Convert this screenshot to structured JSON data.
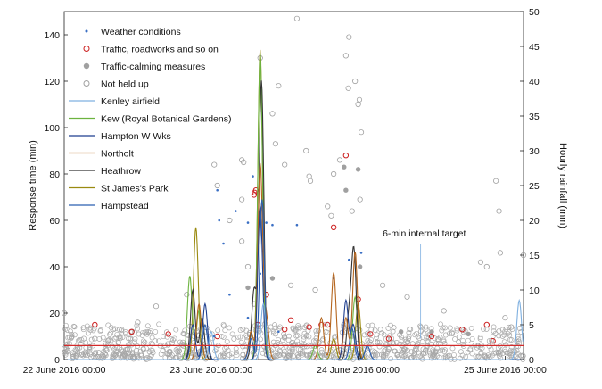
{
  "chart_data": {
    "type": "scatter",
    "title": "",
    "x_axis": {
      "ticks": [
        {
          "x": 0,
          "label": "22 June 2016 00:00"
        },
        {
          "x": 24,
          "label": "23 June 2016 00:00"
        },
        {
          "x": 48,
          "label": "24 June 2016 00:00"
        },
        {
          "x": 72,
          "label": "25 June 2016 00:00"
        }
      ],
      "range_hours": [
        0,
        75
      ]
    },
    "y_left": {
      "label": "Response time (min)",
      "range": [
        0,
        150
      ],
      "ticks": [
        0,
        20,
        40,
        60,
        80,
        100,
        120,
        140
      ]
    },
    "y_right": {
      "label": "Hourly rainfall (mm)",
      "range": [
        0,
        50
      ],
      "ticks": [
        0,
        5,
        10,
        15,
        20,
        25,
        30,
        35,
        40,
        45,
        50
      ]
    },
    "target_line": {
      "value": 6,
      "label": "6-min internal target",
      "color": "#d42a2a",
      "label_x_hours": 52,
      "label_y": 53
    },
    "legend": [
      {
        "key": "weather",
        "label": "Weather conditions",
        "marker": "dot",
        "color": "#3a6fc4"
      },
      {
        "key": "traffic",
        "label": "Traffic, roadworks and so on",
        "marker": "ring",
        "color": "#cc1f1f"
      },
      {
        "key": "calming",
        "label": "Traffic-calming measures",
        "marker": "disc",
        "color": "#a0a0a0"
      },
      {
        "key": "notheld",
        "label": "Not held up",
        "marker": "ring",
        "color": "#a0a0a0"
      },
      {
        "key": "kenley",
        "label": "Kenley airfield",
        "marker": "line",
        "color": "#7fb0e0"
      },
      {
        "key": "kew",
        "label": "Kew (Royal Botanical Gardens)",
        "marker": "line",
        "color": "#6cb33f"
      },
      {
        "key": "hampton",
        "label": "Hampton W Wks",
        "marker": "line",
        "color": "#1f3f8f"
      },
      {
        "key": "northolt",
        "label": "Northolt",
        "marker": "line",
        "color": "#b5651d"
      },
      {
        "key": "heathrow",
        "label": "Heathrow",
        "marker": "line",
        "color": "#333333"
      },
      {
        "key": "stjames",
        "label": "St James's Park",
        "marker": "line",
        "color": "#9a8a10"
      },
      {
        "key": "hampstead",
        "label": "Hampstead",
        "marker": "line",
        "color": "#2a5fb0"
      }
    ],
    "rainfall_series": [
      {
        "key": "stjames",
        "name": "St James's Park",
        "peaks": [
          [
            21.5,
            19
          ],
          [
            32,
            44.5
          ],
          [
            44,
            3
          ],
          [
            48,
            8
          ]
        ]
      },
      {
        "key": "kew",
        "name": "Kew (Royal Botanical Gardens)",
        "peaks": [
          [
            20.5,
            12
          ],
          [
            22,
            7
          ],
          [
            32,
            44
          ],
          [
            41,
            2
          ],
          [
            47.5,
            9
          ]
        ]
      },
      {
        "key": "heathrow",
        "name": "Heathrow",
        "peaks": [
          [
            21,
            10
          ],
          [
            22.5,
            6
          ],
          [
            31,
            10
          ],
          [
            32.2,
            40
          ],
          [
            46.5,
            6
          ],
          [
            47.3,
            15.5
          ]
        ]
      },
      {
        "key": "northolt",
        "name": "Northolt",
        "peaks": [
          [
            22,
            8
          ],
          [
            30.5,
            4
          ],
          [
            32,
            28
          ],
          [
            33,
            6
          ],
          [
            42,
            6
          ],
          [
            44,
            12.5
          ],
          [
            46,
            6
          ],
          [
            47.5,
            15.5
          ]
        ]
      },
      {
        "key": "hampton",
        "name": "Hampton W Wks",
        "peaks": [
          [
            21,
            5
          ],
          [
            23,
            8
          ],
          [
            32,
            22
          ],
          [
            46,
            8.5
          ],
          [
            47.2,
            5
          ]
        ]
      },
      {
        "key": "hampstead",
        "name": "Hampstead",
        "peaks": [
          [
            23,
            5
          ],
          [
            30.5,
            3
          ],
          [
            32.3,
            23
          ],
          [
            47,
            4.5
          ],
          [
            49.5,
            2
          ]
        ]
      },
      {
        "key": "kenley",
        "name": "Kenley airfield",
        "peaks": [
          [
            24,
            4
          ],
          [
            32.5,
            8
          ],
          [
            74.3,
            8.5
          ]
        ]
      }
    ],
    "scatter_series": {
      "weather": [
        [
          25,
          73
        ],
        [
          25.3,
          60
        ],
        [
          26,
          50
        ],
        [
          28,
          64
        ],
        [
          30,
          59
        ],
        [
          30.8,
          79
        ],
        [
          32,
          37
        ],
        [
          33,
          59
        ],
        [
          34,
          58
        ],
        [
          38,
          58
        ],
        [
          44,
          35
        ],
        [
          46.5,
          43
        ],
        [
          48.5,
          46
        ],
        [
          30,
          18
        ],
        [
          35,
          12
        ],
        [
          24.5,
          10
        ],
        [
          27,
          28
        ]
      ],
      "traffic": [
        [
          5,
          15
        ],
        [
          11,
          12
        ],
        [
          17,
          11
        ],
        [
          25,
          10
        ],
        [
          31,
          71
        ],
        [
          31.1,
          72
        ],
        [
          31.3,
          73
        ],
        [
          31.6,
          15
        ],
        [
          33,
          28
        ],
        [
          36,
          13
        ],
        [
          37,
          17
        ],
        [
          40,
          14
        ],
        [
          42,
          15
        ],
        [
          43,
          15
        ],
        [
          44,
          57
        ],
        [
          46,
          88
        ],
        [
          48,
          26
        ],
        [
          50,
          11
        ],
        [
          53,
          9
        ],
        [
          60,
          10
        ],
        [
          65,
          13
        ],
        [
          69,
          15
        ],
        [
          70,
          8
        ]
      ],
      "calming": [
        [
          30,
          31
        ],
        [
          34,
          35
        ],
        [
          45.7,
          83
        ],
        [
          46,
          73
        ],
        [
          48,
          82
        ],
        [
          48.3,
          40
        ],
        [
          55,
          12
        ],
        [
          60,
          12
        ],
        [
          66,
          11
        ]
      ],
      "notheld": [
        [
          0,
          20
        ],
        [
          5,
          9
        ],
        [
          8,
          13
        ],
        [
          12,
          16
        ],
        [
          15,
          23
        ],
        [
          20,
          28
        ],
        [
          24.5,
          84
        ],
        [
          25,
          75
        ],
        [
          27,
          60
        ],
        [
          29,
          86
        ],
        [
          29.3,
          85
        ],
        [
          29,
          69
        ],
        [
          29,
          51
        ],
        [
          30,
          40
        ],
        [
          31,
          24
        ],
        [
          32,
          130
        ],
        [
          34,
          106
        ],
        [
          34.5,
          93
        ],
        [
          35,
          118
        ],
        [
          36,
          84
        ],
        [
          37,
          32
        ],
        [
          38,
          147
        ],
        [
          39.5,
          90
        ],
        [
          40,
          79
        ],
        [
          40.2,
          77
        ],
        [
          41,
          30
        ],
        [
          43,
          66
        ],
        [
          43.6,
          62
        ],
        [
          44,
          80
        ],
        [
          45,
          86
        ],
        [
          46,
          131
        ],
        [
          46.5,
          139
        ],
        [
          46.4,
          117
        ],
        [
          47.5,
          120
        ],
        [
          48,
          110
        ],
        [
          48.2,
          112
        ],
        [
          48.5,
          98
        ],
        [
          47,
          64
        ],
        [
          48.3,
          69
        ],
        [
          52,
          32
        ],
        [
          56,
          27
        ],
        [
          62,
          21
        ],
        [
          68,
          42
        ],
        [
          69,
          40
        ],
        [
          70.5,
          77
        ],
        [
          71,
          64
        ],
        [
          71.2,
          46
        ],
        [
          72,
          18
        ],
        [
          73,
          14
        ],
        [
          75,
          45
        ]
      ]
    }
  }
}
